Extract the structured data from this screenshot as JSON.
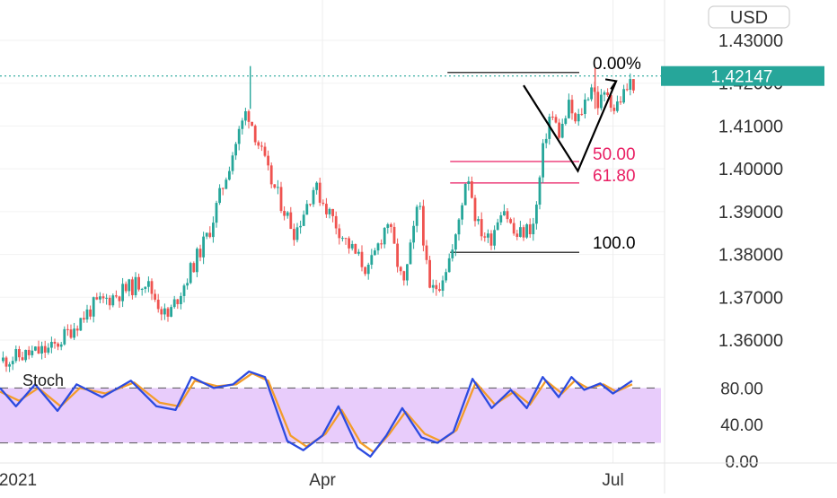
{
  "chart_data": {
    "type": "candlestick",
    "instrument_currency": "USD",
    "last_price": "1.42147",
    "price_axis": {
      "ticks": [
        "1.43000",
        "1.42000",
        "1.41000",
        "1.40000",
        "1.39000",
        "1.38000",
        "1.37000",
        "1.36000"
      ],
      "ylim": [
        1.3535,
        1.4365
      ]
    },
    "time_axis": {
      "labels": [
        "2021",
        "Apr",
        "Jul"
      ]
    },
    "colors": {
      "up": "#26a69a",
      "down": "#ef5350",
      "fib_mid": "#e91e63",
      "fib_edge": "#000000",
      "price_badge": "#26a69a"
    },
    "fibonacci": [
      {
        "label": "0.00%",
        "price": 1.4225,
        "color": "#000000"
      },
      {
        "label": "50.00",
        "price": 1.4017,
        "color": "#e91e63"
      },
      {
        "label": "61.80",
        "price": 1.3967,
        "color": "#e91e63"
      },
      {
        "label": "100.0",
        "price": 1.3805,
        "color": "#000000"
      }
    ],
    "projection": [
      {
        "date": "2021-06-03",
        "price": 1.4195
      },
      {
        "date": "2021-06-20",
        "price": 1.3995
      },
      {
        "date": "2021-07-02",
        "price": 1.4205
      }
    ],
    "anchors": [
      {
        "date": "2020-12-21",
        "price": 1.355
      },
      {
        "date": "2021-01-07",
        "price": 1.358
      },
      {
        "date": "2021-01-20",
        "price": 1.368
      },
      {
        "date": "2021-02-05",
        "price": 1.374
      },
      {
        "date": "2021-02-12",
        "price": 1.365
      },
      {
        "date": "2021-02-25",
        "price": 1.385
      },
      {
        "date": "2021-03-05",
        "price": 1.405
      },
      {
        "date": "2021-03-09",
        "price": 1.414
      },
      {
        "date": "2021-03-16",
        "price": 1.398
      },
      {
        "date": "2021-03-24",
        "price": 1.385
      },
      {
        "date": "2021-03-30",
        "price": 1.396
      },
      {
        "date": "2021-04-09",
        "price": 1.383
      },
      {
        "date": "2021-04-16",
        "price": 1.376
      },
      {
        "date": "2021-04-22",
        "price": 1.388
      },
      {
        "date": "2021-04-27",
        "price": 1.372
      },
      {
        "date": "2021-05-02",
        "price": 1.393
      },
      {
        "date": "2021-05-05",
        "price": 1.371
      },
      {
        "date": "2021-05-08",
        "price": 1.373
      },
      {
        "date": "2021-05-13",
        "price": 1.382
      },
      {
        "date": "2021-05-17",
        "price": 1.4
      },
      {
        "date": "2021-05-20",
        "price": 1.387
      },
      {
        "date": "2021-05-24",
        "price": 1.383
      },
      {
        "date": "2021-05-28",
        "price": 1.392
      },
      {
        "date": "2021-06-01",
        "price": 1.384
      },
      {
        "date": "2021-06-07",
        "price": 1.387
      },
      {
        "date": "2021-06-10",
        "price": 1.406
      },
      {
        "date": "2021-06-12",
        "price": 1.413
      },
      {
        "date": "2021-06-15",
        "price": 1.408
      },
      {
        "date": "2021-06-18",
        "price": 1.415
      },
      {
        "date": "2021-06-20",
        "price": 1.41
      },
      {
        "date": "2021-06-25",
        "price": 1.42
      },
      {
        "date": "2021-06-27",
        "price": 1.415
      },
      {
        "date": "2021-06-30",
        "price": 1.418
      },
      {
        "date": "2021-07-02",
        "price": 1.414
      },
      {
        "date": "2021-07-07",
        "price": 1.42
      }
    ],
    "stoch": {
      "title": "Stoch",
      "ticks": [
        "80.00",
        "40.00",
        "0.00"
      ],
      "ylim": [
        -2,
        102
      ],
      "band": [
        20,
        80
      ],
      "k_color": "#2c4be0",
      "d_color": "#f39c2a",
      "band_color": "#e8ccfb",
      "k_anchors": [
        {
          "date": "2020-12-21",
          "value": 80
        },
        {
          "date": "2020-12-26",
          "value": 60
        },
        {
          "date": "2021-01-01",
          "value": 84
        },
        {
          "date": "2021-01-08",
          "value": 55
        },
        {
          "date": "2021-01-14",
          "value": 84
        },
        {
          "date": "2021-01-22",
          "value": 70
        },
        {
          "date": "2021-01-31",
          "value": 88
        },
        {
          "date": "2021-02-08",
          "value": 60
        },
        {
          "date": "2021-02-14",
          "value": 56
        },
        {
          "date": "2021-02-19",
          "value": 92
        },
        {
          "date": "2021-02-26",
          "value": 80
        },
        {
          "date": "2021-03-04",
          "value": 84
        },
        {
          "date": "2021-03-09",
          "value": 98
        },
        {
          "date": "2021-03-14",
          "value": 92
        },
        {
          "date": "2021-03-21",
          "value": 22
        },
        {
          "date": "2021-03-26",
          "value": 12
        },
        {
          "date": "2021-04-01",
          "value": 28
        },
        {
          "date": "2021-04-06",
          "value": 60
        },
        {
          "date": "2021-04-12",
          "value": 15
        },
        {
          "date": "2021-04-16",
          "value": 5
        },
        {
          "date": "2021-04-21",
          "value": 28
        },
        {
          "date": "2021-04-26",
          "value": 58
        },
        {
          "date": "2021-05-02",
          "value": 26
        },
        {
          "date": "2021-05-07",
          "value": 20
        },
        {
          "date": "2021-05-12",
          "value": 32
        },
        {
          "date": "2021-05-18",
          "value": 90
        },
        {
          "date": "2021-05-24",
          "value": 58
        },
        {
          "date": "2021-05-30",
          "value": 78
        },
        {
          "date": "2021-06-04",
          "value": 58
        },
        {
          "date": "2021-06-09",
          "value": 92
        },
        {
          "date": "2021-06-14",
          "value": 70
        },
        {
          "date": "2021-06-18",
          "value": 92
        },
        {
          "date": "2021-06-22",
          "value": 78
        },
        {
          "date": "2021-06-27",
          "value": 85
        },
        {
          "date": "2021-07-01",
          "value": 74
        },
        {
          "date": "2021-07-07",
          "value": 88
        }
      ],
      "d_anchors": [
        {
          "date": "2020-12-21",
          "value": 76
        },
        {
          "date": "2020-12-27",
          "value": 66
        },
        {
          "date": "2021-01-02",
          "value": 80
        },
        {
          "date": "2021-01-09",
          "value": 60
        },
        {
          "date": "2021-01-15",
          "value": 80
        },
        {
          "date": "2021-01-23",
          "value": 74
        },
        {
          "date": "2021-02-01",
          "value": 86
        },
        {
          "date": "2021-02-09",
          "value": 64
        },
        {
          "date": "2021-02-15",
          "value": 60
        },
        {
          "date": "2021-02-20",
          "value": 88
        },
        {
          "date": "2021-02-27",
          "value": 82
        },
        {
          "date": "2021-03-05",
          "value": 84
        },
        {
          "date": "2021-03-10",
          "value": 96
        },
        {
          "date": "2021-03-15",
          "value": 88
        },
        {
          "date": "2021-03-22",
          "value": 28
        },
        {
          "date": "2021-03-27",
          "value": 16
        },
        {
          "date": "2021-04-02",
          "value": 30
        },
        {
          "date": "2021-04-07",
          "value": 56
        },
        {
          "date": "2021-04-13",
          "value": 20
        },
        {
          "date": "2021-04-17",
          "value": 10
        },
        {
          "date": "2021-04-22",
          "value": 30
        },
        {
          "date": "2021-04-27",
          "value": 54
        },
        {
          "date": "2021-05-03",
          "value": 30
        },
        {
          "date": "2021-05-08",
          "value": 22
        },
        {
          "date": "2021-05-13",
          "value": 34
        },
        {
          "date": "2021-05-19",
          "value": 86
        },
        {
          "date": "2021-05-25",
          "value": 62
        },
        {
          "date": "2021-05-31",
          "value": 76
        },
        {
          "date": "2021-06-05",
          "value": 62
        },
        {
          "date": "2021-06-10",
          "value": 88
        },
        {
          "date": "2021-06-15",
          "value": 74
        },
        {
          "date": "2021-06-19",
          "value": 88
        },
        {
          "date": "2021-06-23",
          "value": 80
        },
        {
          "date": "2021-06-28",
          "value": 84
        },
        {
          "date": "2021-07-02",
          "value": 76
        },
        {
          "date": "2021-07-07",
          "value": 84
        }
      ]
    }
  }
}
